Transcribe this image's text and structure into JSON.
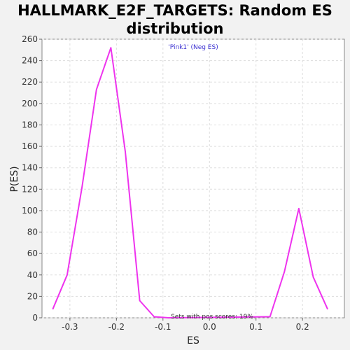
{
  "chart_data": {
    "type": "line",
    "title_line1": "HALLMARK_E2F_TARGETS: Random ES",
    "title_line2": "distribution",
    "xlabel": "ES",
    "ylabel": "P(ES)",
    "xlim": [
      -0.36,
      0.29
    ],
    "ylim": [
      0,
      260
    ],
    "xticks": [
      -0.3,
      -0.2,
      -0.1,
      0.0,
      0.1,
      0.2
    ],
    "xtick_labels": [
      "-0.3",
      "-0.2",
      "-0.1",
      "0.0",
      "0.1",
      "0.2"
    ],
    "yticks": [
      0,
      20,
      40,
      60,
      80,
      100,
      120,
      140,
      160,
      180,
      200,
      220,
      240,
      260
    ],
    "ytick_labels": [
      "0",
      "20",
      "40",
      "60",
      "80",
      "100",
      "120",
      "140",
      "160",
      "180",
      "200",
      "220",
      "240",
      "260"
    ],
    "grid": true,
    "series": [
      {
        "color": "#ee33ee",
        "x": [
          -0.337,
          -0.306,
          -0.274,
          -0.243,
          -0.212,
          -0.181,
          -0.15,
          -0.119,
          -0.088,
          0.13,
          0.161,
          0.192,
          0.223,
          0.254
        ],
        "y": [
          8,
          40,
          122,
          213,
          252,
          155,
          16,
          1,
          0,
          1,
          43,
          102,
          38,
          8
        ]
      }
    ],
    "annotations": {
      "gene": "'Pink1' (Neg ES)",
      "sets_note": "Sets with pos scores: 19%"
    },
    "colors": {
      "line": "#ee33ee",
      "gene_annotation": "#3a2fd1",
      "plot_background": "#ffffff",
      "page_background": "#f2f2f2"
    }
  }
}
